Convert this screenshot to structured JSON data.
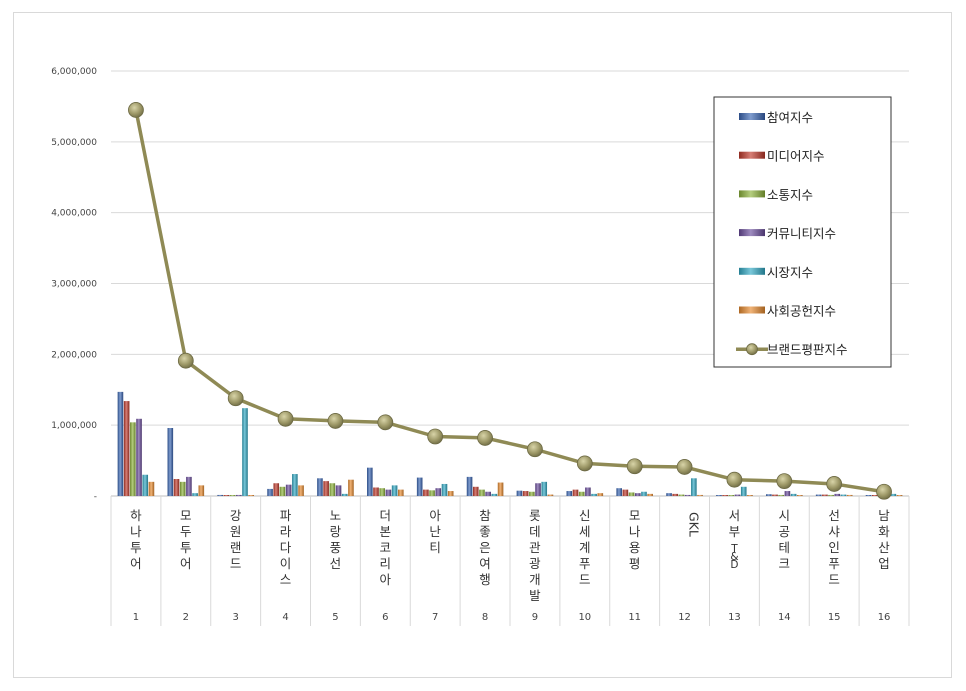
{
  "chart_data": {
    "type": "bar",
    "title": "",
    "xlabel": "",
    "ylabel": "",
    "ylim": [
      0,
      6000000
    ],
    "yticks": [
      "-",
      "1,000,000",
      "2,000,000",
      "3,000,000",
      "4,000,000",
      "5,000,000",
      "6,000,000"
    ],
    "grid": true,
    "legend_position": "top-right",
    "ranks": [
      "1",
      "2",
      "3",
      "4",
      "5",
      "6",
      "7",
      "8",
      "9",
      "10",
      "11",
      "12",
      "13",
      "14",
      "15",
      "16"
    ],
    "categories": [
      "하나투어",
      "모두투어",
      "강원랜드",
      "파라다이스",
      "노랑풍선",
      "더본코리아",
      "아난티",
      "참좋은여행",
      "롯데관광개발",
      "신세계푸드",
      "모나용평",
      "GKL",
      "서부T&D",
      "시공테크",
      "선샤인푸드",
      "남화산업"
    ],
    "series": [
      {
        "name": "참여지수",
        "type": "bar",
        "color": "#3a66b4",
        "values": [
          1470000,
          960000,
          15000,
          100000,
          250000,
          400000,
          260000,
          270000,
          75000,
          70000,
          110000,
          40000,
          10000,
          25000,
          20000,
          8000
        ]
      },
      {
        "name": "미디어지수",
        "type": "bar",
        "color": "#c0392b",
        "values": [
          1340000,
          240000,
          12000,
          180000,
          210000,
          120000,
          90000,
          130000,
          70000,
          90000,
          90000,
          30000,
          10000,
          20000,
          20000,
          6000
        ]
      },
      {
        "name": "소통지수",
        "type": "bar",
        "color": "#8db33a",
        "values": [
          1040000,
          200000,
          10000,
          130000,
          180000,
          110000,
          80000,
          90000,
          60000,
          60000,
          50000,
          20000,
          8000,
          15000,
          15000,
          5000
        ]
      },
      {
        "name": "커뮤니티지수",
        "type": "bar",
        "color": "#6a4c9c",
        "values": [
          1090000,
          270000,
          15000,
          160000,
          150000,
          90000,
          110000,
          60000,
          180000,
          120000,
          40000,
          15000,
          20000,
          70000,
          30000,
          10000
        ]
      },
      {
        "name": "시장지수",
        "type": "bar",
        "color": "#31a9c4",
        "values": [
          300000,
          40000,
          1240000,
          310000,
          30000,
          150000,
          170000,
          30000,
          200000,
          30000,
          60000,
          250000,
          130000,
          30000,
          20000,
          30000
        ]
      },
      {
        "name": "사회공헌지수",
        "type": "bar",
        "color": "#e88a2e",
        "values": [
          200000,
          150000,
          10000,
          150000,
          230000,
          90000,
          70000,
          190000,
          20000,
          40000,
          30000,
          15000,
          10000,
          10000,
          15000,
          5000
        ]
      },
      {
        "name": "브랜드평판지수",
        "type": "line",
        "color": "#8f8a55",
        "values": [
          5450000,
          1910000,
          1380000,
          1090000,
          1060000,
          1040000,
          840000,
          820000,
          660000,
          460000,
          420000,
          410000,
          230000,
          210000,
          170000,
          60000
        ]
      }
    ]
  }
}
